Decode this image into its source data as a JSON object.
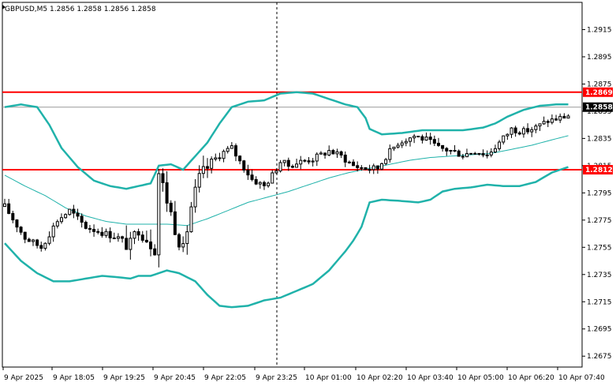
{
  "header": {
    "symbol": "GBPUSD,M5",
    "ohlc": "1.2856 1.2858 1.2856 1.2858"
  },
  "colors": {
    "background": "#ffffff",
    "candle": "#000000",
    "band": "#20b2aa",
    "level": "#ff0000",
    "current_price_label": "#000000",
    "crosshair": "#000000"
  },
  "chart_data": {
    "type": "candlestick",
    "y_axis_side": "right",
    "ylim": [
      1.2667,
      1.2935
    ],
    "grid": false,
    "y_ticks": [
      "1.2915",
      "1.2895",
      "1.2875",
      "1.2855",
      "1.2835",
      "1.2815",
      "1.2795",
      "1.2775",
      "1.2755",
      "1.2735",
      "1.2715",
      "1.2695",
      "1.2675"
    ],
    "x_ticks": [
      "9 Apr 2025",
      "9 Apr 18:05",
      "9 Apr 19:25",
      "9 Apr 20:45",
      "9 Apr 22:05",
      "9 Apr 23:25",
      "10 Apr 01:00",
      "10 Apr 02:20",
      "10 Apr 03:40",
      "10 Apr 05:00",
      "10 Apr 06:20",
      "10 Apr 07:40"
    ],
    "candle_close_anchors": [
      [
        0,
        1.2785
      ],
      [
        5,
        1.2762
      ],
      [
        9,
        1.2755
      ],
      [
        13,
        1.2775
      ],
      [
        16,
        1.2782
      ],
      [
        20,
        1.277
      ],
      [
        24,
        1.2766
      ],
      [
        28,
        1.2762
      ],
      [
        31,
        1.2756
      ],
      [
        33,
        1.277
      ],
      [
        35,
        1.2762
      ],
      [
        37,
        1.2755
      ],
      [
        38,
        1.281
      ],
      [
        40,
        1.279
      ],
      [
        42,
        1.277
      ],
      [
        44,
        1.2752
      ],
      [
        46,
        1.2785
      ],
      [
        48,
        1.2805
      ],
      [
        51,
        1.2818
      ],
      [
        54,
        1.2825
      ],
      [
        56,
        1.2828
      ],
      [
        58,
        1.2818
      ],
      [
        61,
        1.2805
      ],
      [
        64,
        1.28
      ],
      [
        66,
        1.2808
      ],
      [
        68,
        1.2818
      ],
      [
        70,
        1.2815
      ],
      [
        73,
        1.2818
      ],
      [
        76,
        1.282
      ],
      [
        80,
        1.2826
      ],
      [
        83,
        1.2822
      ],
      [
        86,
        1.2815
      ],
      [
        89,
        1.2813
      ],
      [
        92,
        1.2813
      ],
      [
        94,
        1.2822
      ],
      [
        97,
        1.2832
      ],
      [
        101,
        1.2837
      ],
      [
        104,
        1.2834
      ],
      [
        107,
        1.2828
      ],
      [
        110,
        1.2826
      ],
      [
        113,
        1.2823
      ],
      [
        116,
        1.2826
      ],
      [
        119,
        1.2823
      ],
      [
        122,
        1.2832
      ],
      [
        125,
        1.2842
      ],
      [
        128,
        1.284
      ],
      [
        131,
        1.2843
      ],
      [
        134,
        1.2848
      ],
      [
        137,
        1.285
      ],
      [
        139,
        1.2852
      ]
    ],
    "upper_band_anchors": [
      [
        0,
        1.2858
      ],
      [
        4,
        1.286
      ],
      [
        8,
        1.2858
      ],
      [
        11,
        1.2845
      ],
      [
        14,
        1.2828
      ],
      [
        18,
        1.2814
      ],
      [
        22,
        1.2804
      ],
      [
        26,
        1.28
      ],
      [
        30,
        1.2798
      ],
      [
        33,
        1.28
      ],
      [
        36,
        1.2802
      ],
      [
        38,
        1.2815
      ],
      [
        41,
        1.2816
      ],
      [
        44,
        1.2812
      ],
      [
        47,
        1.2822
      ],
      [
        50,
        1.2832
      ],
      [
        53,
        1.2846
      ],
      [
        56,
        1.2858
      ],
      [
        60,
        1.2862
      ],
      [
        64,
        1.2863
      ],
      [
        68,
        1.2868
      ],
      [
        72,
        1.2869
      ],
      [
        76,
        1.2868
      ],
      [
        80,
        1.2864
      ],
      [
        84,
        1.286
      ],
      [
        87,
        1.2858
      ],
      [
        89,
        1.285
      ],
      [
        90,
        1.2842
      ],
      [
        93,
        1.2838
      ],
      [
        98,
        1.2839
      ],
      [
        103,
        1.2841
      ],
      [
        108,
        1.2841
      ],
      [
        113,
        1.2841
      ],
      [
        118,
        1.2843
      ],
      [
        121,
        1.2846
      ],
      [
        124,
        1.2851
      ],
      [
        128,
        1.2856
      ],
      [
        132,
        1.2859
      ],
      [
        136,
        1.286
      ],
      [
        139,
        1.286
      ]
    ],
    "middle_band_anchors": [
      [
        0,
        1.2808
      ],
      [
        5,
        1.28
      ],
      [
        10,
        1.2793
      ],
      [
        15,
        1.2784
      ],
      [
        20,
        1.2778
      ],
      [
        25,
        1.2774
      ],
      [
        30,
        1.2772
      ],
      [
        35,
        1.2772
      ],
      [
        40,
        1.2772
      ],
      [
        45,
        1.2771
      ],
      [
        50,
        1.2776
      ],
      [
        55,
        1.2782
      ],
      [
        60,
        1.2788
      ],
      [
        65,
        1.2792
      ],
      [
        70,
        1.2796
      ],
      [
        75,
        1.2801
      ],
      [
        80,
        1.2806
      ],
      [
        85,
        1.281
      ],
      [
        90,
        1.2813
      ],
      [
        95,
        1.2816
      ],
      [
        100,
        1.2819
      ],
      [
        105,
        1.2821
      ],
      [
        110,
        1.2822
      ],
      [
        115,
        1.2823
      ],
      [
        120,
        1.2824
      ],
      [
        125,
        1.2827
      ],
      [
        130,
        1.283
      ],
      [
        135,
        1.2834
      ],
      [
        139,
        1.2837
      ]
    ],
    "lower_band_anchors": [
      [
        0,
        1.2758
      ],
      [
        4,
        1.2745
      ],
      [
        8,
        1.2736
      ],
      [
        12,
        1.273
      ],
      [
        16,
        1.273
      ],
      [
        20,
        1.2732
      ],
      [
        24,
        1.2734
      ],
      [
        28,
        1.2733
      ],
      [
        31,
        1.2732
      ],
      [
        33,
        1.2734
      ],
      [
        36,
        1.2734
      ],
      [
        40,
        1.2738
      ],
      [
        43,
        1.2736
      ],
      [
        47,
        1.273
      ],
      [
        50,
        1.272
      ],
      [
        53,
        1.2712
      ],
      [
        56,
        1.2711
      ],
      [
        60,
        1.2712
      ],
      [
        64,
        1.2716
      ],
      [
        68,
        1.2718
      ],
      [
        72,
        1.2723
      ],
      [
        76,
        1.2728
      ],
      [
        80,
        1.2738
      ],
      [
        84,
        1.2752
      ],
      [
        86,
        1.276
      ],
      [
        88,
        1.277
      ],
      [
        90,
        1.2788
      ],
      [
        93,
        1.279
      ],
      [
        98,
        1.2789
      ],
      [
        102,
        1.2788
      ],
      [
        105,
        1.279
      ],
      [
        108,
        1.2796
      ],
      [
        111,
        1.2798
      ],
      [
        115,
        1.2799
      ],
      [
        119,
        1.2801
      ],
      [
        123,
        1.28
      ],
      [
        127,
        1.28
      ],
      [
        131,
        1.2803
      ],
      [
        135,
        1.281
      ],
      [
        139,
        1.2814
      ]
    ],
    "horizontal_levels": [
      {
        "value": 1.2869,
        "label": "1.2869"
      },
      {
        "value": 1.2812,
        "label": "1.2812"
      }
    ],
    "current_price": {
      "value": 1.2858,
      "label": "1.2858"
    },
    "vertical_marker_tick_index": 5
  }
}
